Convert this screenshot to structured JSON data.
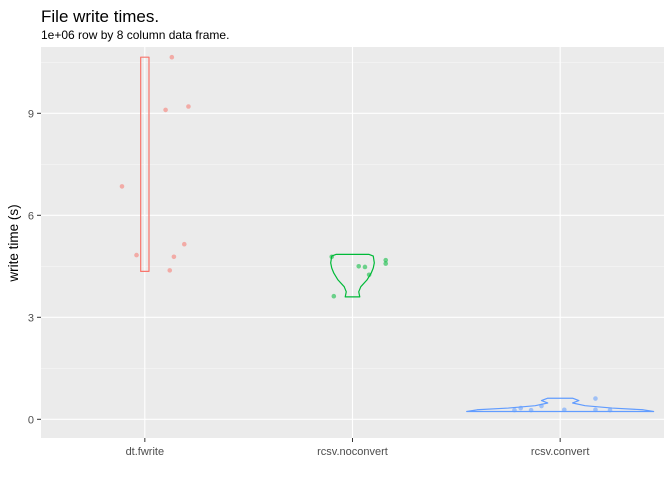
{
  "chart_data": {
    "type": "violin",
    "title": "File write times.",
    "subtitle": "1e+06 row by 8 column data frame.",
    "xlabel": "",
    "ylabel": "write time (s)",
    "categories": [
      "dt.fwrite",
      "rcsv.noconvert",
      "rcsv.convert"
    ],
    "ylim": [
      -0.55,
      10.95
    ],
    "yticks": [
      0,
      3,
      6,
      9
    ],
    "grid": true,
    "legend": "none",
    "series": [
      {
        "category": "dt.fwrite",
        "color": "#F8766D",
        "points": [
          {
            "x": -0.11,
            "y": 6.85
          },
          {
            "x": 0.13,
            "y": 10.65
          },
          {
            "x": 0.1,
            "y": 9.1
          },
          {
            "x": 0.21,
            "y": 9.2
          },
          {
            "x": -0.04,
            "y": 4.83
          },
          {
            "x": 0.14,
            "y": 4.78
          },
          {
            "x": 0.19,
            "y": 5.15
          },
          {
            "x": 0.12,
            "y": 4.38
          }
        ],
        "violin": [
          {
            "y": 4.35,
            "w": 0.02
          },
          {
            "y": 10.65,
            "w": 0.02
          }
        ]
      },
      {
        "category": "rcsv.noconvert",
        "color": "#00BA38",
        "points": [
          {
            "x": -0.1,
            "y": 4.78
          },
          {
            "x": 0.03,
            "y": 4.5
          },
          {
            "x": 0.06,
            "y": 4.48
          },
          {
            "x": 0.08,
            "y": 4.25
          },
          {
            "x": 0.16,
            "y": 4.68
          },
          {
            "x": 0.16,
            "y": 4.58
          },
          {
            "x": -0.09,
            "y": 3.62
          }
        ],
        "violin": [
          {
            "y": 3.6,
            "w": 0.035
          },
          {
            "y": 3.75,
            "w": 0.03
          },
          {
            "y": 3.9,
            "w": 0.04
          },
          {
            "y": 4.1,
            "w": 0.07
          },
          {
            "y": 4.3,
            "w": 0.09
          },
          {
            "y": 4.45,
            "w": 0.1
          },
          {
            "y": 4.6,
            "w": 0.105
          },
          {
            "y": 4.8,
            "w": 0.1
          },
          {
            "y": 4.85,
            "w": 0.08
          }
        ]
      },
      {
        "category": "rcsv.convert",
        "color": "#619CFF",
        "points": [
          {
            "x": -0.22,
            "y": 0.27
          },
          {
            "x": -0.19,
            "y": 0.33
          },
          {
            "x": -0.14,
            "y": 0.27
          },
          {
            "x": -0.09,
            "y": 0.39
          },
          {
            "x": 0.02,
            "y": 0.28
          },
          {
            "x": 0.17,
            "y": 0.61
          },
          {
            "x": 0.17,
            "y": 0.28
          },
          {
            "x": 0.24,
            "y": 0.27
          }
        ],
        "violin": [
          {
            "y": 0.23,
            "w": 0.45
          },
          {
            "y": 0.28,
            "w": 0.4
          },
          {
            "y": 0.33,
            "w": 0.25
          },
          {
            "y": 0.4,
            "w": 0.12
          },
          {
            "y": 0.48,
            "w": 0.06
          },
          {
            "y": 0.55,
            "w": 0.09
          },
          {
            "y": 0.62,
            "w": 0.06
          }
        ]
      }
    ]
  }
}
